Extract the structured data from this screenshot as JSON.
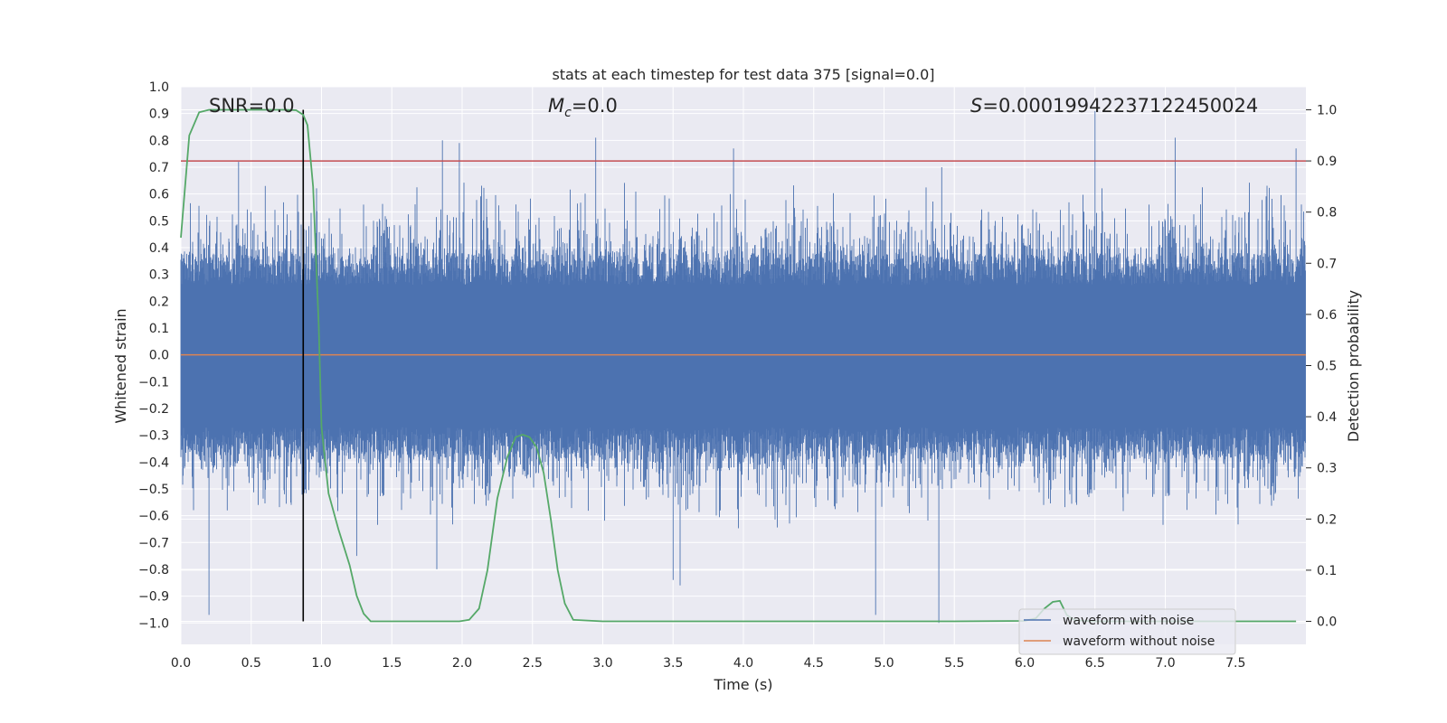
{
  "chart_data": {
    "type": "line",
    "title": "stats at each timestep for test data 375 [signal=0.0]",
    "xlabel": "Time (s)",
    "ylabel_left": "Whitened strain",
    "ylabel_right": "Detection probability",
    "xlim": [
      0.0,
      8.0
    ],
    "ylim_left": [
      -1.08,
      1.0
    ],
    "ylim_right": [
      -0.045,
      1.045
    ],
    "x_ticks": [
      "0.0",
      "0.5",
      "1.0",
      "1.5",
      "2.0",
      "2.5",
      "3.0",
      "3.5",
      "4.0",
      "4.5",
      "5.0",
      "5.5",
      "6.0",
      "6.5",
      "7.0",
      "7.5"
    ],
    "y_ticks_left": [
      "1.0",
      "0.9",
      "0.8",
      "0.7",
      "0.6",
      "0.5",
      "0.4",
      "0.3",
      "0.2",
      "0.1",
      "0.0",
      "−0.1",
      "−0.2",
      "−0.3",
      "−0.4",
      "−0.5",
      "−0.6",
      "−0.7",
      "−0.8",
      "−0.9",
      "−1.0"
    ],
    "y_ticks_right": [
      "1.0",
      "0.9",
      "0.8",
      "0.7",
      "0.6",
      "0.5",
      "0.4",
      "0.3",
      "0.2",
      "0.1",
      "0.0"
    ],
    "annotations": {
      "snr": "SNR=0.0",
      "mc_symbol": "M",
      "mc_sub": "c",
      "mc_value": "=0.0",
      "s_symbol": "S",
      "s_value": "=0.00019942237122450024"
    },
    "threshold": {
      "value": 0.9,
      "color": "#c44e52"
    },
    "marker_time": 0.87,
    "series": [
      {
        "name": "waveform with noise",
        "color": "#4c72b0",
        "axis": "left",
        "t_range": [
          0.0,
          8.0
        ],
        "envelope_peaks": [
          [
            0.2,
            -0.97
          ],
          [
            0.33,
            -0.58
          ],
          [
            0.41,
            0.72
          ],
          [
            0.6,
            0.63
          ],
          [
            1.25,
            -0.75
          ],
          [
            1.82,
            -0.8
          ],
          [
            1.86,
            0.8
          ],
          [
            1.98,
            0.79
          ],
          [
            2.95,
            0.81
          ],
          [
            3.5,
            -0.84
          ],
          [
            3.55,
            -0.86
          ],
          [
            3.93,
            0.77
          ],
          [
            4.94,
            -0.97
          ],
          [
            5.39,
            -1.0
          ],
          [
            5.41,
            0.7
          ],
          [
            6.5,
            0.91
          ],
          [
            7.07,
            0.81
          ],
          [
            7.93,
            0.77
          ]
        ]
      },
      {
        "name": "waveform without noise",
        "color": "#dd8452",
        "axis": "left",
        "value": 0.0
      },
      {
        "name": "detection probability",
        "color": "#55a868",
        "axis": "right",
        "x": [
          0.0,
          0.06,
          0.13,
          0.2,
          0.3,
          0.5,
          0.75,
          0.82,
          0.87,
          0.9,
          0.94,
          0.98,
          1.0,
          1.05,
          1.12,
          1.2,
          1.25,
          1.3,
          1.35,
          1.45,
          1.75,
          1.98,
          2.05,
          2.12,
          2.18,
          2.25,
          2.32,
          2.38,
          2.43,
          2.48,
          2.53,
          2.58,
          2.63,
          2.68,
          2.73,
          2.79,
          3.0,
          4.0,
          5.0,
          5.5,
          6.0,
          6.08,
          6.14,
          6.2,
          6.25,
          6.3,
          6.36,
          6.5,
          7.0,
          7.5,
          7.93
        ],
        "y": [
          0.75,
          0.95,
          0.995,
          1.0,
          1.0,
          1.0,
          1.0,
          0.999,
          0.99,
          0.97,
          0.85,
          0.58,
          0.38,
          0.25,
          0.18,
          0.11,
          0.05,
          0.015,
          0.0,
          0.0,
          0.0,
          0.0,
          0.003,
          0.025,
          0.1,
          0.24,
          0.32,
          0.36,
          0.365,
          0.36,
          0.34,
          0.29,
          0.2,
          0.1,
          0.035,
          0.003,
          0.0,
          0.0,
          0.0,
          0.0,
          0.001,
          0.006,
          0.025,
          0.038,
          0.04,
          0.012,
          0.002,
          0.0,
          0.0,
          0.0,
          0.0
        ]
      }
    ],
    "legend": {
      "position": "lower-right",
      "entries": [
        {
          "label": "waveform with noise",
          "color": "#4c72b0"
        },
        {
          "label": "waveform without noise",
          "color": "#dd8452"
        }
      ]
    }
  }
}
